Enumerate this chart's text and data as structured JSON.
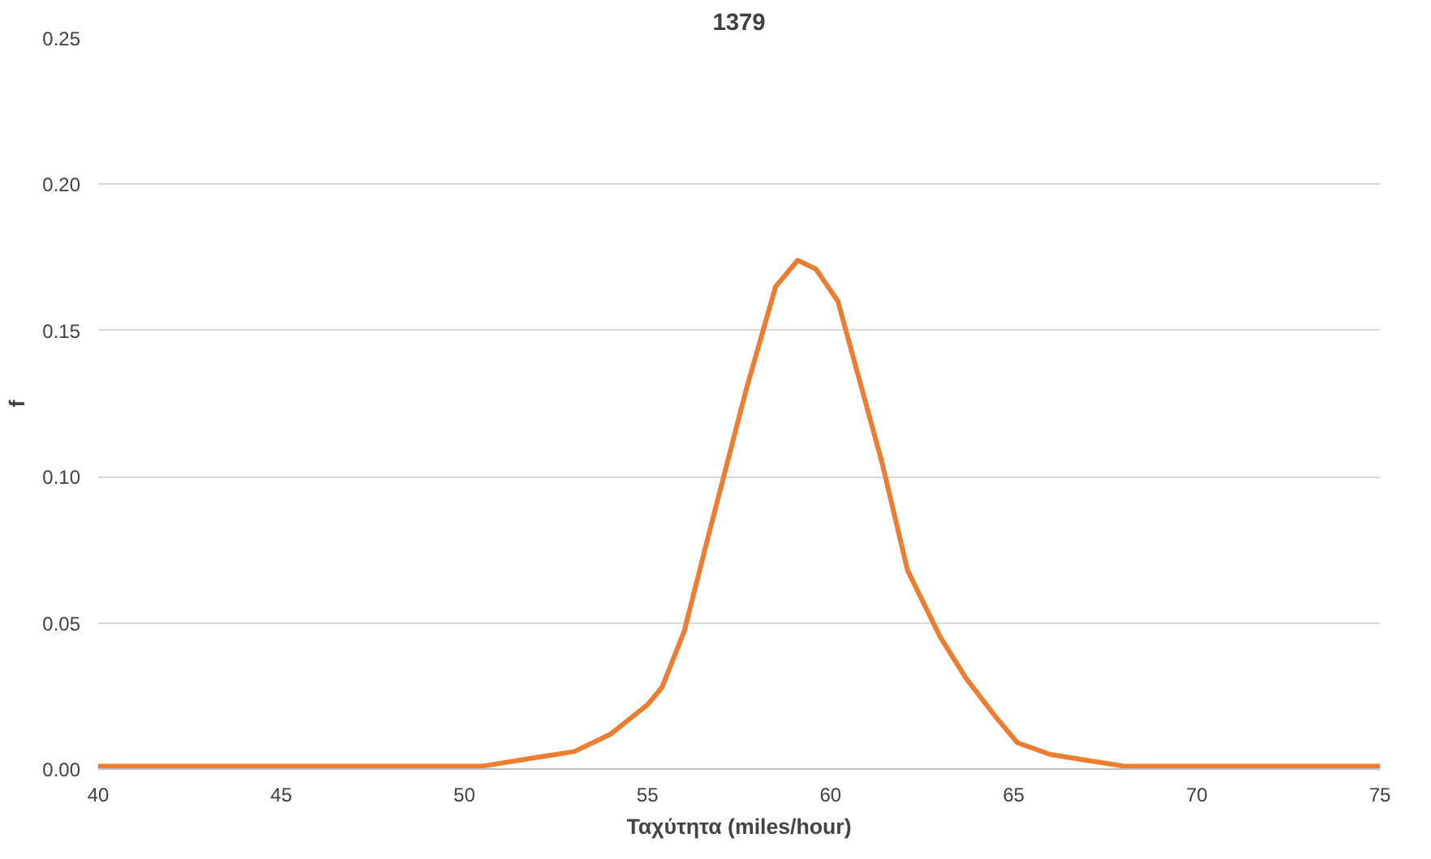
{
  "chart_data": {
    "type": "line",
    "title": "1379",
    "xlabel": "Ταχύτητα (miles/hour)",
    "ylabel": "f",
    "x": [
      40,
      45,
      50,
      50.5,
      52,
      53,
      54,
      55,
      55.4,
      56,
      56.75,
      57.7,
      58.5,
      59.1,
      59.6,
      60.2,
      61.4,
      62.1,
      63,
      63.7,
      64.5,
      65.1,
      66,
      67,
      68,
      70,
      75
    ],
    "series": [
      {
        "color": "#ed7d31",
        "values": [
          0.001,
          0.001,
          0.001,
          0.001,
          0.004,
          0.006,
          0.012,
          0.022,
          0.028,
          0.047,
          0.084,
          0.13,
          0.165,
          0.174,
          0.171,
          0.16,
          0.105,
          0.068,
          0.045,
          0.031,
          0.018,
          0.009,
          0.005,
          0.003,
          0.001,
          0.001,
          0.001
        ]
      }
    ],
    "xlim": [
      40,
      75
    ],
    "xticks": [
      40,
      45,
      50,
      55,
      60,
      65,
      70,
      75
    ],
    "ylim": [
      0,
      0.25
    ],
    "yticks": [
      {
        "value": 0,
        "label": "0.00"
      },
      {
        "value": 0.05,
        "label": "0.05"
      },
      {
        "value": 0.1,
        "label": "0.10"
      },
      {
        "value": 0.15,
        "label": "0.15"
      },
      {
        "value": 0.2,
        "label": "0.20"
      },
      {
        "value": 0.25,
        "label": "0.25"
      }
    ],
    "grid": "y",
    "marker": "none",
    "line_style": "solid"
  }
}
